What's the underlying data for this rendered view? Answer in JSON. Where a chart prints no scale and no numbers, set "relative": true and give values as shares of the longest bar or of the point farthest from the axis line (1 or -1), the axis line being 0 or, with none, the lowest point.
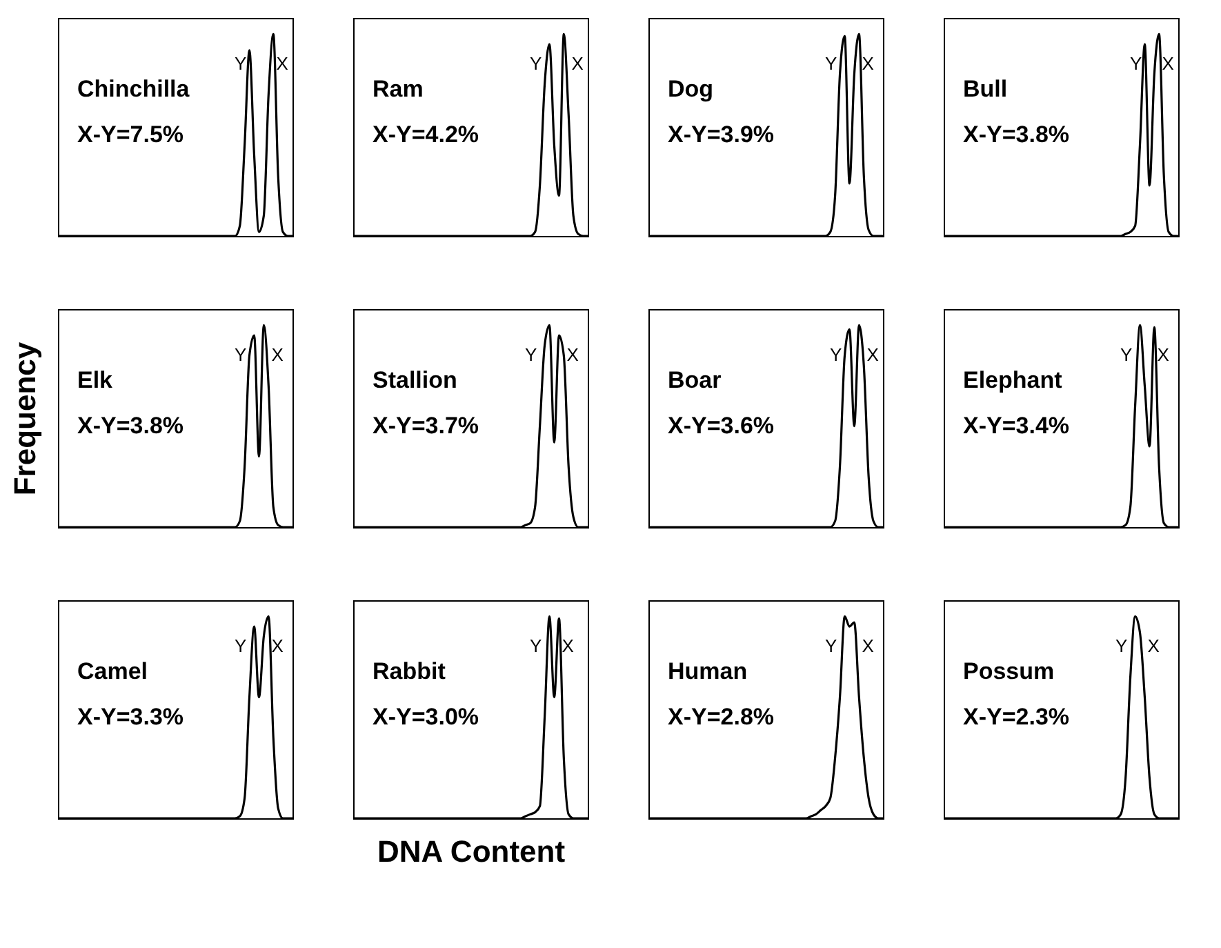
{
  "chart_data": [
    {
      "type": "line",
      "relative": true,
      "tick_labels": false,
      "color": "#000000",
      "annotations": [
        "Chinchilla",
        "X-Y=7.5%",
        "Y",
        "X"
      ],
      "categories": [
        null,
        null,
        null,
        null,
        null,
        null,
        null,
        null,
        null,
        null,
        null,
        null,
        null,
        null,
        null,
        null,
        null,
        null,
        null,
        null,
        null,
        null,
        null,
        null,
        null,
        null,
        null,
        null,
        null,
        null,
        null,
        null,
        null,
        null,
        null,
        null,
        null,
        null,
        null,
        null,
        null,
        null,
        null,
        null,
        null,
        null,
        null,
        null,
        null,
        null
      ],
      "values": [
        0,
        0,
        0,
        0,
        0,
        0,
        0,
        0,
        0,
        0,
        0,
        0,
        0,
        0,
        0,
        0,
        0,
        0,
        0,
        0,
        0,
        0,
        0,
        0,
        0,
        0,
        0,
        0,
        0,
        0,
        0,
        0,
        0,
        0,
        0,
        0,
        0,
        0,
        0.05,
        0.45,
        0.92,
        0.4,
        0.02,
        0.1,
        0.7,
        1,
        0.3,
        0.02,
        0,
        0
      ]
    },
    {
      "type": "line",
      "relative": true,
      "tick_labels": false,
      "color": "#000000",
      "annotations": [
        "Ram",
        "X-Y=4.2%",
        "Y",
        "X"
      ],
      "categories": [
        null,
        null,
        null,
        null,
        null,
        null,
        null,
        null,
        null,
        null,
        null,
        null,
        null,
        null,
        null,
        null,
        null,
        null,
        null,
        null,
        null,
        null,
        null,
        null,
        null,
        null,
        null,
        null,
        null,
        null,
        null,
        null,
        null,
        null,
        null,
        null,
        null,
        null,
        null,
        null,
        null,
        null,
        null,
        null,
        null,
        null,
        null,
        null,
        null,
        null
      ],
      "values": [
        0,
        0,
        0,
        0,
        0,
        0,
        0,
        0,
        0,
        0,
        0,
        0,
        0,
        0,
        0,
        0,
        0,
        0,
        0,
        0,
        0,
        0,
        0,
        0,
        0,
        0,
        0,
        0,
        0,
        0,
        0,
        0,
        0,
        0,
        0,
        0,
        0,
        0,
        0.02,
        0.25,
        0.75,
        0.95,
        0.45,
        0.2,
        1,
        0.6,
        0.1,
        0.01,
        0,
        0
      ]
    },
    {
      "type": "line",
      "relative": true,
      "tick_labels": false,
      "color": "#000000",
      "annotations": [
        "Dog",
        "X-Y=3.9%",
        "Y",
        "X"
      ],
      "categories": [
        null,
        null,
        null,
        null,
        null,
        null,
        null,
        null,
        null,
        null,
        null,
        null,
        null,
        null,
        null,
        null,
        null,
        null,
        null,
        null,
        null,
        null,
        null,
        null,
        null,
        null,
        null,
        null,
        null,
        null,
        null,
        null,
        null,
        null,
        null,
        null,
        null,
        null,
        null,
        null,
        null,
        null,
        null,
        null,
        null,
        null,
        null,
        null,
        null,
        null
      ],
      "values": [
        0,
        0,
        0,
        0,
        0,
        0,
        0,
        0,
        0,
        0,
        0,
        0,
        0,
        0,
        0,
        0,
        0,
        0,
        0,
        0,
        0,
        0,
        0,
        0,
        0,
        0,
        0,
        0,
        0,
        0,
        0,
        0,
        0,
        0,
        0,
        0,
        0,
        0,
        0.02,
        0.2,
        0.8,
        0.99,
        0.26,
        0.8,
        1,
        0.3,
        0.03,
        0,
        0,
        0
      ]
    },
    {
      "type": "line",
      "relative": true,
      "tick_labels": false,
      "color": "#000000",
      "annotations": [
        "Bull",
        "X-Y=3.8%",
        "Y",
        "X"
      ],
      "categories": [
        null,
        null,
        null,
        null,
        null,
        null,
        null,
        null,
        null,
        null,
        null,
        null,
        null,
        null,
        null,
        null,
        null,
        null,
        null,
        null,
        null,
        null,
        null,
        null,
        null,
        null,
        null,
        null,
        null,
        null,
        null,
        null,
        null,
        null,
        null,
        null,
        null,
        null,
        null,
        null,
        null,
        null,
        null,
        null,
        null,
        null,
        null,
        null,
        null,
        null
      ],
      "values": [
        0,
        0,
        0,
        0,
        0,
        0,
        0,
        0,
        0,
        0,
        0,
        0,
        0,
        0,
        0,
        0,
        0,
        0,
        0,
        0,
        0,
        0,
        0,
        0,
        0,
        0,
        0,
        0,
        0,
        0,
        0,
        0,
        0,
        0,
        0,
        0,
        0,
        0,
        0.01,
        0.02,
        0.05,
        0.45,
        0.95,
        0.25,
        0.8,
        1,
        0.3,
        0.02,
        0,
        0
      ]
    },
    {
      "type": "line",
      "relative": true,
      "tick_labels": false,
      "color": "#000000",
      "ylabel": "Frequency",
      "annotations": [
        "Elk",
        "X-Y=3.8%",
        "Y",
        "X"
      ],
      "categories": [
        null,
        null,
        null,
        null,
        null,
        null,
        null,
        null,
        null,
        null,
        null,
        null,
        null,
        null,
        null,
        null,
        null,
        null,
        null,
        null,
        null,
        null,
        null,
        null,
        null,
        null,
        null,
        null,
        null,
        null,
        null,
        null,
        null,
        null,
        null,
        null,
        null,
        null,
        null,
        null,
        null,
        null,
        null,
        null,
        null,
        null,
        null,
        null,
        null,
        null
      ],
      "values": [
        0,
        0,
        0,
        0,
        0,
        0,
        0,
        0,
        0,
        0,
        0,
        0,
        0,
        0,
        0,
        0,
        0,
        0,
        0,
        0,
        0,
        0,
        0,
        0,
        0,
        0,
        0,
        0,
        0,
        0,
        0,
        0,
        0,
        0,
        0,
        0,
        0,
        0,
        0.03,
        0.3,
        0.85,
        0.95,
        0.35,
        1,
        0.7,
        0.1,
        0.01,
        0,
        0,
        0
      ]
    },
    {
      "type": "line",
      "relative": true,
      "tick_labels": false,
      "color": "#000000",
      "annotations": [
        "Stallion",
        "X-Y=3.7%",
        "Y",
        "X"
      ],
      "categories": [
        null,
        null,
        null,
        null,
        null,
        null,
        null,
        null,
        null,
        null,
        null,
        null,
        null,
        null,
        null,
        null,
        null,
        null,
        null,
        null,
        null,
        null,
        null,
        null,
        null,
        null,
        null,
        null,
        null,
        null,
        null,
        null,
        null,
        null,
        null,
        null,
        null,
        null,
        null,
        null,
        null,
        null,
        null,
        null,
        null,
        null,
        null,
        null,
        null,
        null
      ],
      "values": [
        0,
        0,
        0,
        0,
        0,
        0,
        0,
        0,
        0,
        0,
        0,
        0,
        0,
        0,
        0,
        0,
        0,
        0,
        0,
        0,
        0,
        0,
        0,
        0,
        0,
        0,
        0,
        0,
        0,
        0,
        0,
        0,
        0,
        0,
        0,
        0,
        0.01,
        0.02,
        0.1,
        0.5,
        0.9,
        1,
        0.42,
        0.95,
        0.85,
        0.3,
        0.05,
        0,
        0,
        0
      ]
    },
    {
      "type": "line",
      "relative": true,
      "tick_labels": false,
      "color": "#000000",
      "annotations": [
        "Boar",
        "X-Y=3.6%",
        "Y",
        "X"
      ],
      "categories": [
        null,
        null,
        null,
        null,
        null,
        null,
        null,
        null,
        null,
        null,
        null,
        null,
        null,
        null,
        null,
        null,
        null,
        null,
        null,
        null,
        null,
        null,
        null,
        null,
        null,
        null,
        null,
        null,
        null,
        null,
        null,
        null,
        null,
        null,
        null,
        null,
        null,
        null,
        null,
        null,
        null,
        null,
        null,
        null,
        null,
        null,
        null,
        null,
        null,
        null
      ],
      "values": [
        0,
        0,
        0,
        0,
        0,
        0,
        0,
        0,
        0,
        0,
        0,
        0,
        0,
        0,
        0,
        0,
        0,
        0,
        0,
        0,
        0,
        0,
        0,
        0,
        0,
        0,
        0,
        0,
        0,
        0,
        0,
        0,
        0,
        0,
        0,
        0,
        0,
        0,
        0,
        0.03,
        0.3,
        0.85,
        0.98,
        0.5,
        1,
        0.8,
        0.25,
        0.03,
        0,
        0
      ]
    },
    {
      "type": "line",
      "relative": true,
      "tick_labels": false,
      "color": "#000000",
      "annotations": [
        "Elephant",
        "X-Y=3.4%",
        "Y",
        "X"
      ],
      "categories": [
        null,
        null,
        null,
        null,
        null,
        null,
        null,
        null,
        null,
        null,
        null,
        null,
        null,
        null,
        null,
        null,
        null,
        null,
        null,
        null,
        null,
        null,
        null,
        null,
        null,
        null,
        null,
        null,
        null,
        null,
        null,
        null,
        null,
        null,
        null,
        null,
        null,
        null,
        null,
        null,
        null,
        null,
        null,
        null,
        null,
        null,
        null,
        null,
        null,
        null
      ],
      "values": [
        0,
        0,
        0,
        0,
        0,
        0,
        0,
        0,
        0,
        0,
        0,
        0,
        0,
        0,
        0,
        0,
        0,
        0,
        0,
        0,
        0,
        0,
        0,
        0,
        0,
        0,
        0,
        0,
        0,
        0,
        0,
        0,
        0,
        0,
        0,
        0,
        0,
        0,
        0.01,
        0.1,
        0.6,
        1,
        0.7,
        0.4,
        0.99,
        0.3,
        0.02,
        0,
        0,
        0
      ]
    },
    {
      "type": "line",
      "relative": true,
      "tick_labels": false,
      "color": "#000000",
      "annotations": [
        "Camel",
        "X-Y=3.3%",
        "Y",
        "X"
      ],
      "categories": [
        null,
        null,
        null,
        null,
        null,
        null,
        null,
        null,
        null,
        null,
        null,
        null,
        null,
        null,
        null,
        null,
        null,
        null,
        null,
        null,
        null,
        null,
        null,
        null,
        null,
        null,
        null,
        null,
        null,
        null,
        null,
        null,
        null,
        null,
        null,
        null,
        null,
        null,
        null,
        null,
        null,
        null,
        null,
        null,
        null,
        null,
        null,
        null,
        null,
        null
      ],
      "values": [
        0,
        0,
        0,
        0,
        0,
        0,
        0,
        0,
        0,
        0,
        0,
        0,
        0,
        0,
        0,
        0,
        0,
        0,
        0,
        0,
        0,
        0,
        0,
        0,
        0,
        0,
        0,
        0,
        0,
        0,
        0,
        0,
        0,
        0,
        0,
        0,
        0,
        0,
        0.01,
        0.1,
        0.6,
        0.95,
        0.6,
        0.9,
        1,
        0.4,
        0.05,
        0,
        0,
        0
      ]
    },
    {
      "type": "line",
      "relative": true,
      "tick_labels": false,
      "color": "#000000",
      "xlabel": "DNA Content",
      "annotations": [
        "Rabbit",
        "X-Y=3.0%",
        "Y",
        "X"
      ],
      "categories": [
        null,
        null,
        null,
        null,
        null,
        null,
        null,
        null,
        null,
        null,
        null,
        null,
        null,
        null,
        null,
        null,
        null,
        null,
        null,
        null,
        null,
        null,
        null,
        null,
        null,
        null,
        null,
        null,
        null,
        null,
        null,
        null,
        null,
        null,
        null,
        null,
        null,
        null,
        null,
        null,
        null,
        null,
        null,
        null,
        null,
        null,
        null,
        null,
        null,
        null
      ],
      "values": [
        0,
        0,
        0,
        0,
        0,
        0,
        0,
        0,
        0,
        0,
        0,
        0,
        0,
        0,
        0,
        0,
        0,
        0,
        0,
        0,
        0,
        0,
        0,
        0,
        0,
        0,
        0,
        0,
        0,
        0,
        0,
        0,
        0,
        0,
        0,
        0,
        0.01,
        0.02,
        0.03,
        0.06,
        0.5,
        1,
        0.6,
        0.99,
        0.3,
        0.02,
        0,
        0,
        0,
        0
      ]
    },
    {
      "type": "line",
      "relative": true,
      "tick_labels": false,
      "color": "#000000",
      "annotations": [
        "Human",
        "X-Y=2.8%",
        "Y",
        "X"
      ],
      "categories": [
        null,
        null,
        null,
        null,
        null,
        null,
        null,
        null,
        null,
        null,
        null,
        null,
        null,
        null,
        null,
        null,
        null,
        null,
        null,
        null,
        null,
        null,
        null,
        null,
        null,
        null,
        null,
        null,
        null,
        null,
        null,
        null,
        null,
        null,
        null,
        null,
        null,
        null,
        null,
        null,
        null,
        null,
        null,
        null,
        null,
        null,
        null,
        null,
        null,
        null
      ],
      "values": [
        0,
        0,
        0,
        0,
        0,
        0,
        0,
        0,
        0,
        0,
        0,
        0,
        0,
        0,
        0,
        0,
        0,
        0,
        0,
        0,
        0,
        0,
        0,
        0,
        0,
        0,
        0,
        0,
        0,
        0,
        0,
        0,
        0,
        0,
        0.01,
        0.02,
        0.04,
        0.06,
        0.1,
        0.3,
        0.6,
        1,
        0.95,
        0.97,
        0.6,
        0.3,
        0.1,
        0.02,
        0,
        0
      ]
    },
    {
      "type": "line",
      "relative": true,
      "tick_labels": false,
      "color": "#000000",
      "annotations": [
        "Possum",
        "X-Y=2.3%",
        "Y",
        "X"
      ],
      "categories": [
        null,
        null,
        null,
        null,
        null,
        null,
        null,
        null,
        null,
        null,
        null,
        null,
        null,
        null,
        null,
        null,
        null,
        null,
        null,
        null,
        null,
        null,
        null,
        null,
        null,
        null,
        null,
        null,
        null,
        null,
        null,
        null,
        null,
        null,
        null,
        null,
        null,
        null,
        null,
        null,
        null,
        null,
        null,
        null,
        null,
        null,
        null,
        null,
        null,
        null
      ],
      "values": [
        0,
        0,
        0,
        0,
        0,
        0,
        0,
        0,
        0,
        0,
        0,
        0,
        0,
        0,
        0,
        0,
        0,
        0,
        0,
        0,
        0,
        0,
        0,
        0,
        0,
        0,
        0,
        0,
        0,
        0,
        0,
        0,
        0,
        0,
        0,
        0,
        0,
        0.02,
        0.2,
        0.7,
        1,
        0.92,
        0.6,
        0.2,
        0.02,
        0,
        0,
        0,
        0,
        0
      ]
    }
  ]
}
